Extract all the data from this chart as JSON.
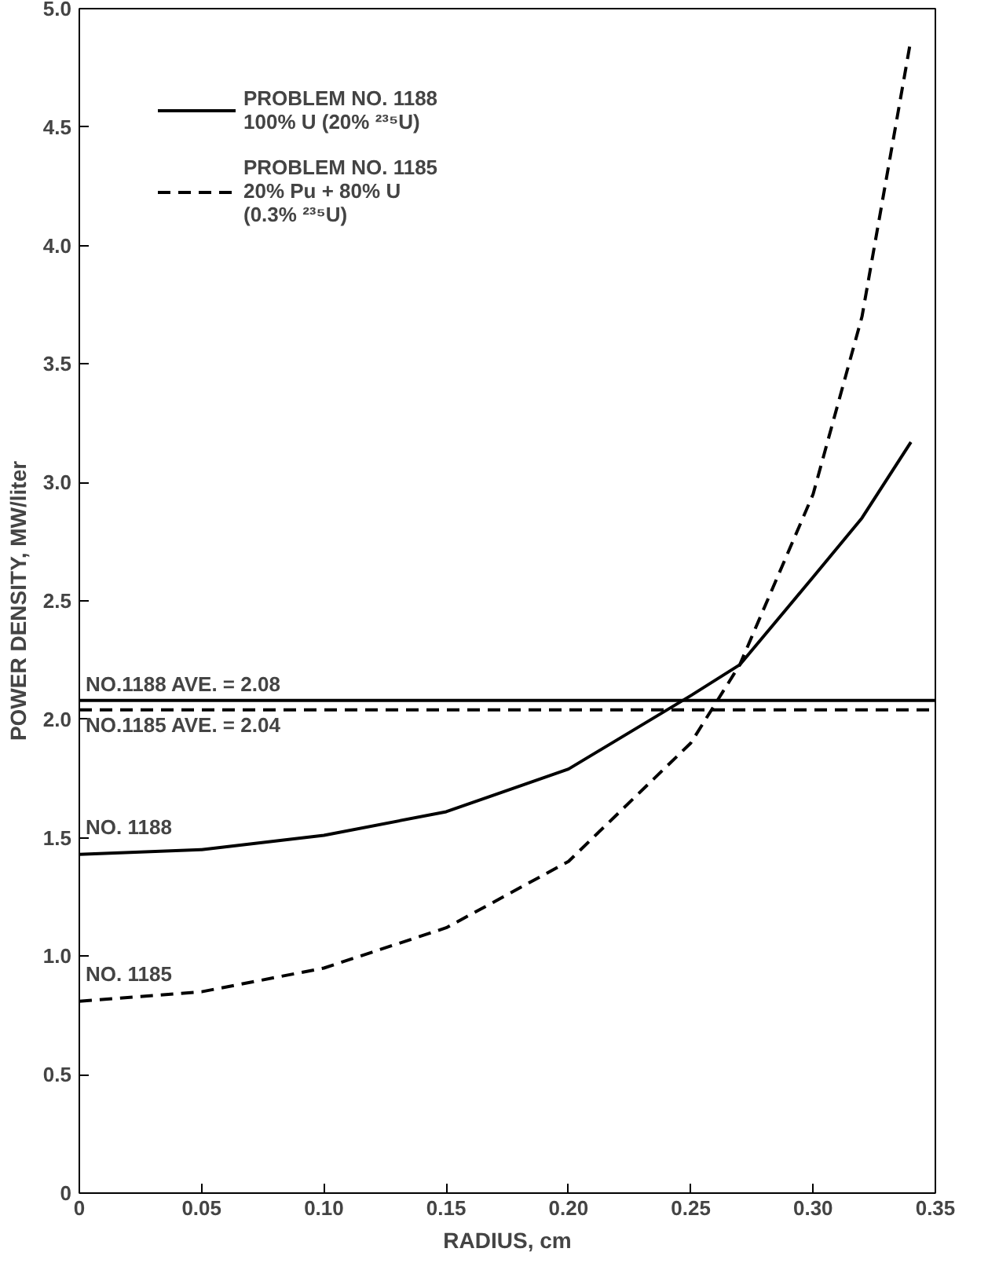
{
  "chart_data": {
    "type": "line",
    "xlabel": "RADIUS, cm",
    "ylabel": "POWER DENSITY, MW/liter",
    "xlim": [
      0,
      0.35
    ],
    "ylim": [
      0,
      5.0
    ],
    "xticks": [
      0,
      0.05,
      {
        "value": 0.1,
        "label": "0.10"
      },
      0.15,
      {
        "value": 0.2,
        "label": "0.20"
      },
      0.25,
      {
        "value": 0.3,
        "label": "0.30"
      },
      0.35
    ],
    "yticks": [
      0,
      0.5,
      {
        "value": 1,
        "label": "1.0"
      },
      1.5,
      {
        "value": 2,
        "label": "2.0"
      },
      2.5,
      {
        "value": 3,
        "label": "3.0"
      },
      3.5,
      {
        "value": 4,
        "label": "4.0"
      },
      4.5,
      {
        "value": 5,
        "label": "5.0"
      }
    ],
    "grid": false,
    "legend": "top left",
    "marker": "none",
    "series": [
      {
        "name": "PROBLEM NO. 1188\n100% U (20% ²³⁵U)",
        "color": "#000000",
        "line_style": "solid",
        "x": [
          0,
          0.05,
          0.1,
          0.15,
          0.2,
          0.25,
          0.27,
          0.3,
          0.32,
          0.34
        ],
        "values": [
          1.43,
          1.45,
          1.51,
          1.61,
          1.79,
          2.1,
          2.23,
          2.6,
          2.85,
          3.17
        ]
      },
      {
        "name": "PROBLEM NO. 1185\n20% Pu + 80% U\n(0.3% ²³⁵U)",
        "color": "#000000",
        "line_style": "dashed",
        "x": [
          0,
          0.05,
          0.1,
          0.15,
          0.2,
          0.25,
          0.27,
          0.3,
          0.32,
          0.34
        ],
        "values": [
          0.81,
          0.85,
          0.95,
          1.12,
          1.4,
          1.9,
          2.23,
          2.95,
          3.7,
          4.87
        ]
      }
    ],
    "ref_lines": [
      {
        "axis": "y",
        "value": 2.08,
        "label": "NO.1188 AVE. = 2.08",
        "line_style": "solid",
        "color": "#000000"
      },
      {
        "axis": "y",
        "value": 2.04,
        "label": "NO.1185 AVE. = 2.04",
        "line_style": "dashed",
        "color": "#000000"
      }
    ],
    "annotations": [
      {
        "text": "NO. 1188",
        "x": 0,
        "y": 1.43
      },
      {
        "text": "NO. 1185",
        "x": 0,
        "y": 0.81
      }
    ]
  }
}
